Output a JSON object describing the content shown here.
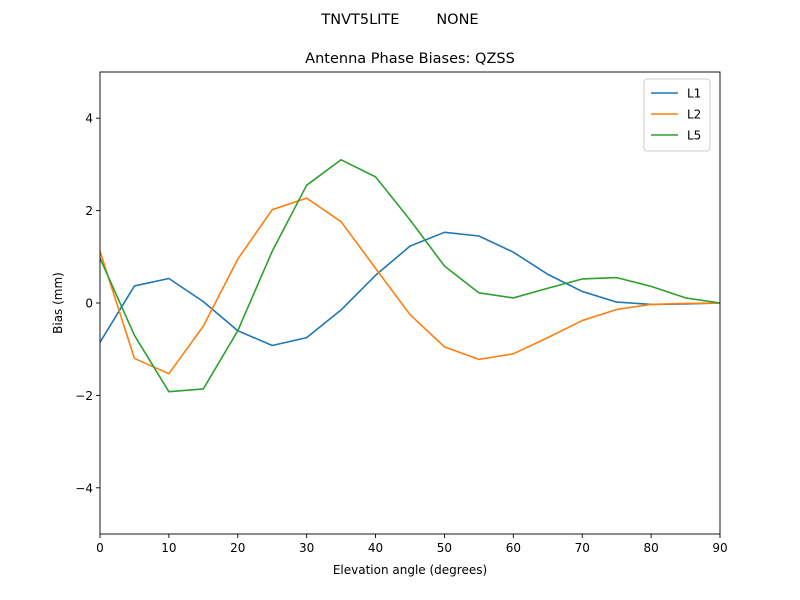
{
  "suptitle": "TNVT5LITE        NONE",
  "chart_data": {
    "type": "line",
    "title": "Antenna Phase Biases: QZSS",
    "xlabel": "Elevation angle (degrees)",
    "ylabel": "Bias (mm)",
    "xlim": [
      0,
      90
    ],
    "ylim": [
      -5,
      5
    ],
    "xticks": [
      0,
      10,
      20,
      30,
      40,
      50,
      60,
      70,
      80,
      90
    ],
    "yticks": [
      -4,
      -2,
      0,
      2,
      4
    ],
    "ytick_labels": [
      "−4",
      "−2",
      "0",
      "2",
      "4"
    ],
    "grid": false,
    "legend_position": "top-right",
    "x": [
      0,
      5,
      10,
      15,
      20,
      25,
      30,
      35,
      40,
      45,
      50,
      55,
      60,
      65,
      70,
      75,
      80,
      85,
      90
    ],
    "series": [
      {
        "name": "L1",
        "color": "#1f77b4",
        "values": [
          -0.85,
          0.37,
          0.53,
          0.03,
          -0.6,
          -0.92,
          -0.75,
          -0.15,
          0.6,
          1.23,
          1.53,
          1.45,
          1.1,
          0.62,
          0.25,
          0.02,
          -0.03,
          -0.02,
          0.0
        ]
      },
      {
        "name": "L2",
        "color": "#ff7f0e",
        "values": [
          1.12,
          -1.2,
          -1.53,
          -0.5,
          0.95,
          2.02,
          2.27,
          1.76,
          0.75,
          -0.25,
          -0.95,
          -1.22,
          -1.1,
          -0.75,
          -0.38,
          -0.14,
          -0.03,
          -0.01,
          0.0
        ]
      },
      {
        "name": "L5",
        "color": "#2ca02c",
        "values": [
          0.97,
          -0.7,
          -1.92,
          -1.86,
          -0.6,
          1.12,
          2.55,
          3.1,
          2.73,
          1.8,
          0.8,
          0.22,
          0.11,
          0.32,
          0.52,
          0.55,
          0.36,
          0.11,
          0.0
        ]
      }
    ]
  }
}
